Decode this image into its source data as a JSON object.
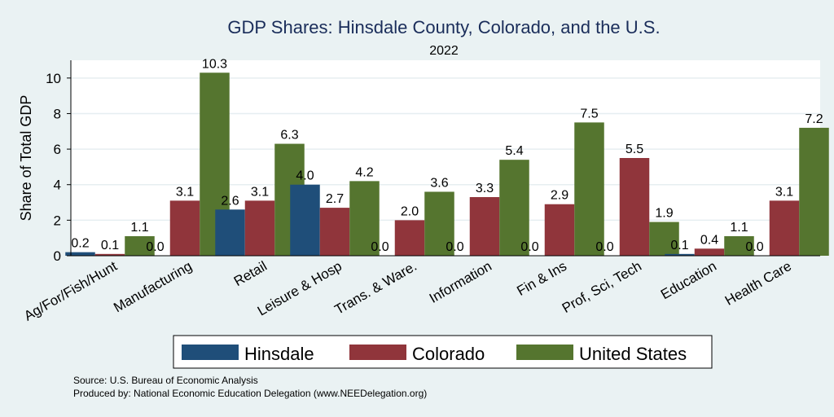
{
  "chart_data": {
    "type": "bar",
    "title": "GDP Shares: Hinsdale County, Colorado, and the U.S.",
    "subtitle": "2022",
    "xlabel": "",
    "ylabel": "Share of Total GDP",
    "ylim": [
      0,
      11
    ],
    "yticks": [
      0,
      2,
      4,
      6,
      8,
      10
    ],
    "grid": true,
    "legend_position": "bottom",
    "categories": [
      "Ag/For/Fish/Hunt",
      "Manufacturing",
      "Retail",
      "Leisure & Hosp",
      "Trans. & Ware.",
      "Information",
      "Fin & Ins",
      "Prof, Sci, Tech",
      "Education",
      "Health Care"
    ],
    "series": [
      {
        "name": "Hinsdale",
        "color": "#1f4e79",
        "values": [
          0.2,
          0.0,
          2.6,
          4.0,
          0.0,
          0.0,
          0.0,
          0.0,
          0.1,
          0.0
        ],
        "labels": [
          "0.2",
          "0.0",
          "2.6",
          "4.0",
          "0.0",
          "0.0",
          "0.0",
          "0.0",
          "0.1",
          "0.0"
        ]
      },
      {
        "name": "Colorado",
        "color": "#90353b",
        "values": [
          0.1,
          3.1,
          3.1,
          2.7,
          2.0,
          3.3,
          2.9,
          5.5,
          0.4,
          3.1
        ],
        "labels": [
          "0.1",
          "3.1",
          "3.1",
          "2.7",
          "2.0",
          "3.3",
          "2.9",
          "5.5",
          "0.4",
          "3.1"
        ]
      },
      {
        "name": "United States",
        "color": "#55752f",
        "values": [
          1.1,
          10.3,
          6.3,
          4.2,
          3.6,
          5.4,
          7.5,
          1.9,
          1.1,
          7.2
        ],
        "labels": [
          "1.1",
          "10.3",
          "6.3",
          "4.2",
          "3.6",
          "5.4",
          "7.5",
          "1.9",
          "1.1",
          "7.2"
        ]
      }
    ],
    "notes": [
      "Source: U.S. Bureau of Economic Analysis",
      "Produced by: National Economic Education Delegation (www.NEEDelegation.org)"
    ]
  }
}
